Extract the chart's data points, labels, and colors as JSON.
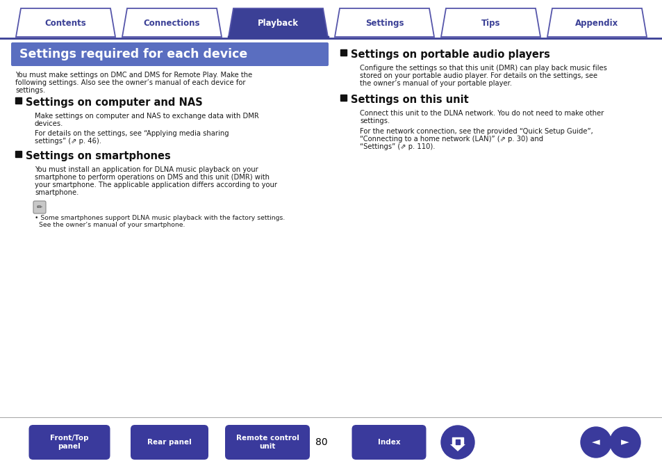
{
  "bg_color": "#ffffff",
  "tab_border_color": "#5555aa",
  "tab_active_bg": "#3b4096",
  "tab_inactive_bg": "#ffffff",
  "tab_text_active": "#ffffff",
  "tab_text_inactive": "#3b4096",
  "tabs": [
    "Contents",
    "Connections",
    "Playback",
    "Settings",
    "Tips",
    "Appendix"
  ],
  "active_tab": 2,
  "header_bg": "#5a6ec0",
  "header_text": "Settings required for each device",
  "header_text_color": "#ffffff",
  "body_text_color": "#1a1a1a",
  "heading_color": "#111111",
  "intro_text": "You must make settings on DMC and DMS for Remote Play. Make the\nfollowing settings. Also see the owner’s manual of each device for\nsettings.",
  "section1_heading": "Settings on computer and NAS",
  "section1_p1": "Make settings on computer and NAS to exchange data with DMR\ndevices.",
  "section1_p2": "For details on the settings, see “Applying media sharing\nsettings” (⇗ p. 46).",
  "section2_heading": "Settings on smartphones",
  "section2_p1": "You must install an application for DLNA music playback on your\nsmartphone to perform operations on DMS and this unit (DMR) with\nyour smartphone. The applicable application differs according to your\nsmartphone.",
  "section2_note": "Some smartphones support DLNA music playback with the factory settings.\nSee the owner’s manual of your smartphone.",
  "section3_heading": "Settings on portable audio players",
  "section3_p1": "Configure the settings so that this unit (DMR) can play back music files\nstored on your portable audio player. For details on the settings, see\nthe owner’s manual of your portable player.",
  "section4_heading": "Settings on this unit",
  "section4_p1": "Connect this unit to the DLNA network. You do not need to make other\nsettings.",
  "section4_p2": "For the network connection, see the provided “Quick Setup Guide”,\n“Connecting to a home network (LAN)” (⇗ p. 30) and\n“Settings” (⇗ p. 110).",
  "page_number": "80",
  "button_color_top": "#6670c8",
  "button_color_bottom": "#3a3a9c",
  "button_text_color": "#ffffff",
  "btn1_label": "Front/Top\npanel",
  "btn2_label": "Rear panel",
  "btn3_label": "Remote control\nunit",
  "btn4_label": "Index",
  "divider_color": "#aaaaaa",
  "nav_line_color": "#3b4096"
}
